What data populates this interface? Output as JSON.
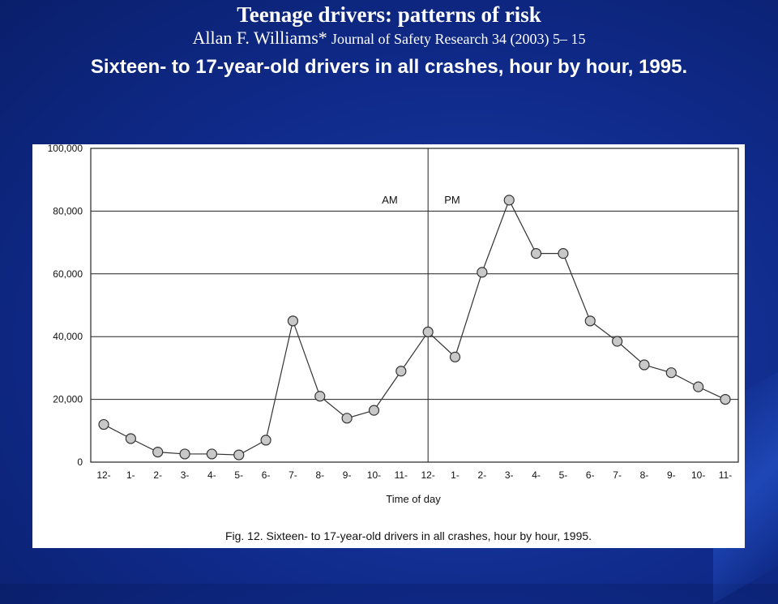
{
  "header": {
    "title": "Teenage drivers: patterns of risk",
    "author": "Allan F. Williams*",
    "journal": "Journal of Safety Research 34 (2003) 5– 15",
    "subtitle": "Sixteen- to 17-year-old drivers in all crashes, hour by hour, 1995."
  },
  "chart_data": {
    "type": "line",
    "title": "",
    "caption": "Fig. 12. Sixteen- to 17-year-old drivers in all crashes, hour by hour, 1995.",
    "xlabel": "Time of day",
    "ylabel": "",
    "categories": [
      "12-",
      "1-",
      "2-",
      "3-",
      "4-",
      "5-",
      "6-",
      "7-",
      "8-",
      "9-",
      "10-",
      "11-",
      "12-",
      "1-",
      "2-",
      "3-",
      "4-",
      "5-",
      "6-",
      "7-",
      "8-",
      "9-",
      "10-",
      "11-"
    ],
    "y_ticks": [
      "0",
      "20,000",
      "40,000",
      "60,000",
      "80,000",
      "100,000"
    ],
    "ylim": [
      0,
      100000
    ],
    "series": [
      {
        "values": [
          12000,
          7500,
          3200,
          2600,
          2600,
          2300,
          7000,
          45000,
          21000,
          14000,
          16500,
          29000,
          41500,
          33500,
          60500,
          83500,
          66500,
          66500,
          45000,
          38500,
          31000,
          28500,
          24000,
          20000
        ]
      }
    ],
    "annotations": [
      "AM",
      "PM"
    ],
    "grid": true
  }
}
